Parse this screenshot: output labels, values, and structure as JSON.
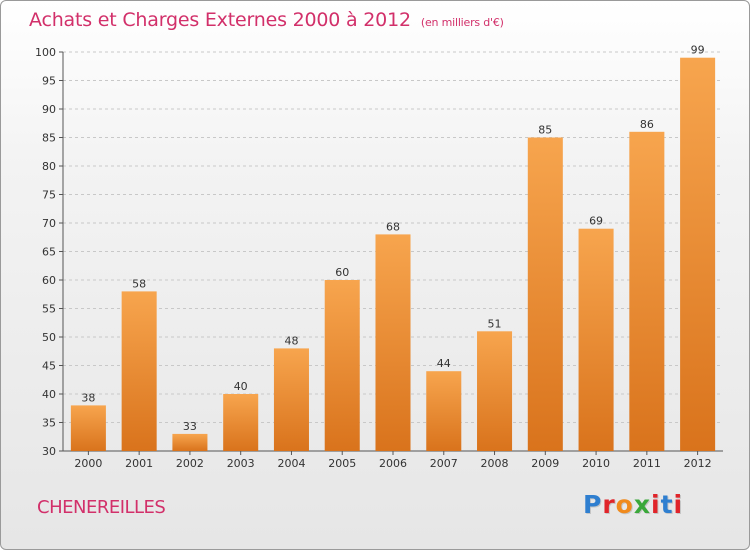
{
  "title": "Achats et Charges Externes 2000 à 2012",
  "title_unit": "(en milliers d'€)",
  "place": "CHENEREILLES",
  "logo": {
    "text": "Proxiti",
    "letter_colors": [
      "#2f7fd0",
      "#e0242a",
      "#f08a1c",
      "#3aa83a",
      "#e0242a",
      "#2f7fd0",
      "#e0242a"
    ]
  },
  "colors": {
    "bar_top": "#f7a54e",
    "bar_bottom": "#d9731c",
    "grid": "#c8c8c8",
    "title": "#d2306a"
  },
  "chart_data": {
    "type": "bar",
    "title": "Achats et Charges Externes 2000 à 2012",
    "subtitle": "(en milliers d'€)",
    "categories": [
      "2000",
      "2001",
      "2002",
      "2003",
      "2004",
      "2005",
      "2006",
      "2007",
      "2008",
      "2009",
      "2010",
      "2011",
      "2012"
    ],
    "values": [
      38,
      58,
      33,
      40,
      48,
      60,
      68,
      44,
      51,
      85,
      69,
      86,
      99
    ],
    "ylim": [
      30,
      100
    ],
    "yticks": [
      30,
      35,
      40,
      45,
      50,
      55,
      60,
      65,
      70,
      75,
      80,
      85,
      90,
      95,
      100
    ],
    "grid": "horizontal dashed",
    "data_labels": true
  }
}
